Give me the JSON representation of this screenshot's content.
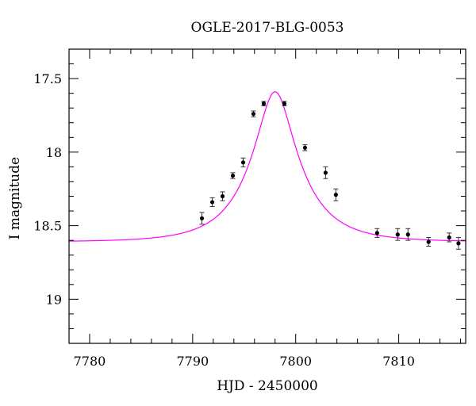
{
  "chart_data": {
    "type": "scatter",
    "title": "OGLE-2017-BLG-0053",
    "xlabel": "HJD - 2450000",
    "ylabel": "I magnitude",
    "xlim": [
      7778,
      7816.5
    ],
    "ylim": [
      19.3,
      17.3
    ],
    "y_inverted": true,
    "grid": false,
    "x_ticks": [
      7780,
      7790,
      7800,
      7810
    ],
    "x_tick_labels": [
      "7780",
      "7790",
      "7800",
      "7810"
    ],
    "y_ticks": [
      17.5,
      18,
      18.5,
      19
    ],
    "y_tick_labels": [
      "17.5",
      "18",
      "18.5",
      "19"
    ],
    "series": [
      {
        "kind": "points-with-errorbars",
        "color": "#000000",
        "x": [
          7790.9,
          7791.9,
          7792.9,
          7793.9,
          7794.9,
          7795.9,
          7796.9,
          7798.9,
          7800.9,
          7802.9,
          7803.9,
          7807.9,
          7809.9,
          7810.9,
          7812.9,
          7814.9,
          7815.8
        ],
        "y": [
          18.45,
          18.34,
          18.3,
          18.16,
          18.07,
          17.74,
          17.67,
          17.67,
          17.97,
          18.14,
          18.29,
          18.55,
          18.56,
          18.56,
          18.61,
          18.58,
          18.62
        ],
        "yerr": [
          0.04,
          0.03,
          0.03,
          0.02,
          0.03,
          0.02,
          0.015,
          0.015,
          0.02,
          0.04,
          0.04,
          0.03,
          0.04,
          0.04,
          0.03,
          0.03,
          0.04
        ]
      },
      {
        "kind": "model-curve",
        "color": "#ff00ff",
        "model": "point-lens",
        "t0": 7798.0,
        "u0": 0.33,
        "tE": 5.0,
        "I_peak": 17.59,
        "I_baseline": 18.61
      }
    ]
  }
}
